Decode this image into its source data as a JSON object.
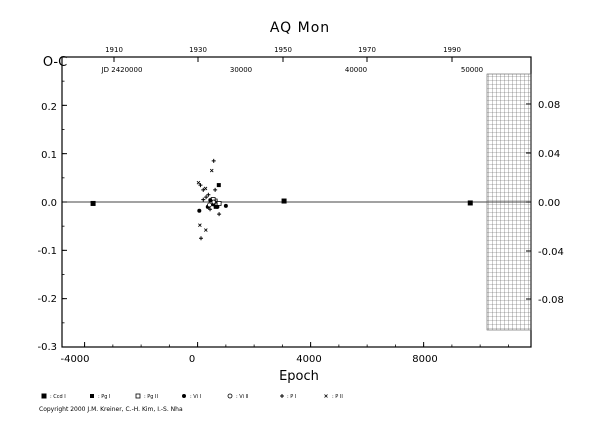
{
  "chart_data": {
    "type": "scatter",
    "title": "AQ  Mon",
    "xlabel": "Epoch",
    "ylabel": "O-C",
    "xlim": [
      -4800,
      11800
    ],
    "ylim": [
      -0.3,
      0.3
    ],
    "x_ticks": [
      "-4000",
      "0",
      "4000",
      "8000"
    ],
    "y_ticks_left": [
      "0.2",
      "0.1",
      "0.0",
      "-0.1",
      "-0.2",
      "-0.3"
    ],
    "y_ticks_right": [
      "0.08",
      "0.04",
      "0.00",
      "-0.04",
      "-0.08"
    ],
    "top_year_ticks": [
      "1910",
      "1930",
      "1950",
      "1970",
      "1990"
    ],
    "top_jd_ticks": [
      "JD 2420000",
      "30000",
      "40000",
      "50000"
    ],
    "grid": false,
    "series": [
      {
        "name": ": Ccd I",
        "marker": "filled-square",
        "points": [
          [
            -3700,
            -0.003
          ],
          [
            3060,
            0.002
          ],
          [
            9650,
            -0.002
          ]
        ]
      },
      {
        "name": ": Pg I",
        "marker": "filled-square-small",
        "points": [
          [
            750,
            0.035
          ],
          [
            640,
            -0.01
          ]
        ]
      },
      {
        "name": ": Pg II",
        "marker": "open-square",
        "points": [
          [
            620,
            0.002
          ],
          [
            760,
            -0.003
          ],
          [
            550,
            0.005
          ]
        ]
      },
      {
        "name": ": Vi I",
        "marker": "filled-circle",
        "points": [
          [
            60,
            -0.018
          ],
          [
            450,
            0.004
          ],
          [
            560,
            -0.005
          ],
          [
            700,
            -0.01
          ],
          [
            1000,
            -0.008
          ],
          [
            360,
            -0.01
          ]
        ]
      },
      {
        "name": ": Vi II",
        "marker": "open-circle",
        "points": [
          [
            420,
            -0.006
          ],
          [
            580,
            0.0
          ]
        ]
      },
      {
        "name": ": P I",
        "marker": "plus",
        "points": [
          [
            100,
            0.035
          ],
          [
            380,
            0.015
          ],
          [
            570,
            0.085
          ],
          [
            120,
            -0.075
          ],
          [
            200,
            0.005
          ],
          [
            300,
            0.01
          ],
          [
            440,
            -0.015
          ],
          [
            620,
            0.025
          ],
          [
            760,
            -0.025
          ],
          [
            200,
            0.025
          ]
        ]
      },
      {
        "name": ": P II",
        "marker": "small-cross",
        "points": [
          [
            30,
            0.04
          ],
          [
            280,
            0.028
          ],
          [
            500,
            0.065
          ],
          [
            290,
            -0.058
          ],
          [
            80,
            -0.048
          ],
          [
            650,
            0.0
          ]
        ]
      }
    ]
  },
  "copyright": "Copyright 2000 J.M. Kreiner, C.-H. Kim, I.-S. Nha"
}
